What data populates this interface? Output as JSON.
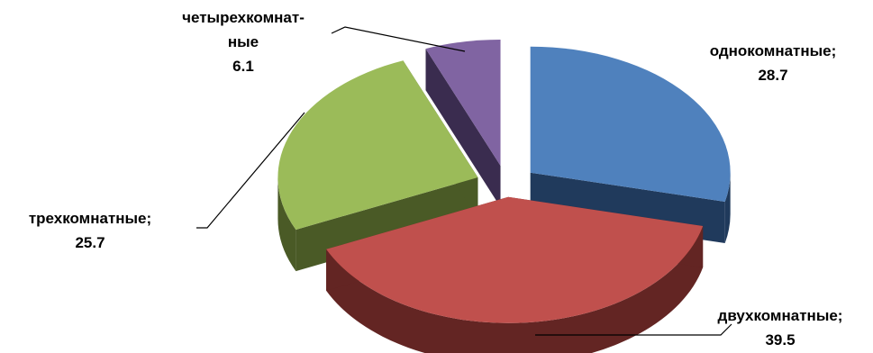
{
  "chart_data": {
    "type": "pie",
    "style": "3d-exploded",
    "title": "",
    "unit": "%",
    "categories": [
      "однокомнатные",
      "двухкомнатные",
      "трехкомнатные",
      "четырехкомнатные"
    ],
    "values": [
      28.7,
      39.5,
      25.7,
      6.1
    ],
    "colors": [
      "#4F81BD",
      "#C0504D",
      "#9BBB59",
      "#8064A2"
    ],
    "side_colors": [
      "#203A5C",
      "#632523",
      "#4A5A26",
      "#3A2C4F"
    ],
    "labels": [
      {
        "lines": [
          "однокомнатные;",
          "28.7"
        ]
      },
      {
        "lines": [
          "двухкомнатные;",
          "39.5"
        ]
      },
      {
        "lines": [
          "трехкомнатные;",
          "25.7"
        ]
      },
      {
        "lines": [
          "четырехкомнат-",
          "ные",
          "6.1"
        ]
      }
    ],
    "legend": "none"
  }
}
